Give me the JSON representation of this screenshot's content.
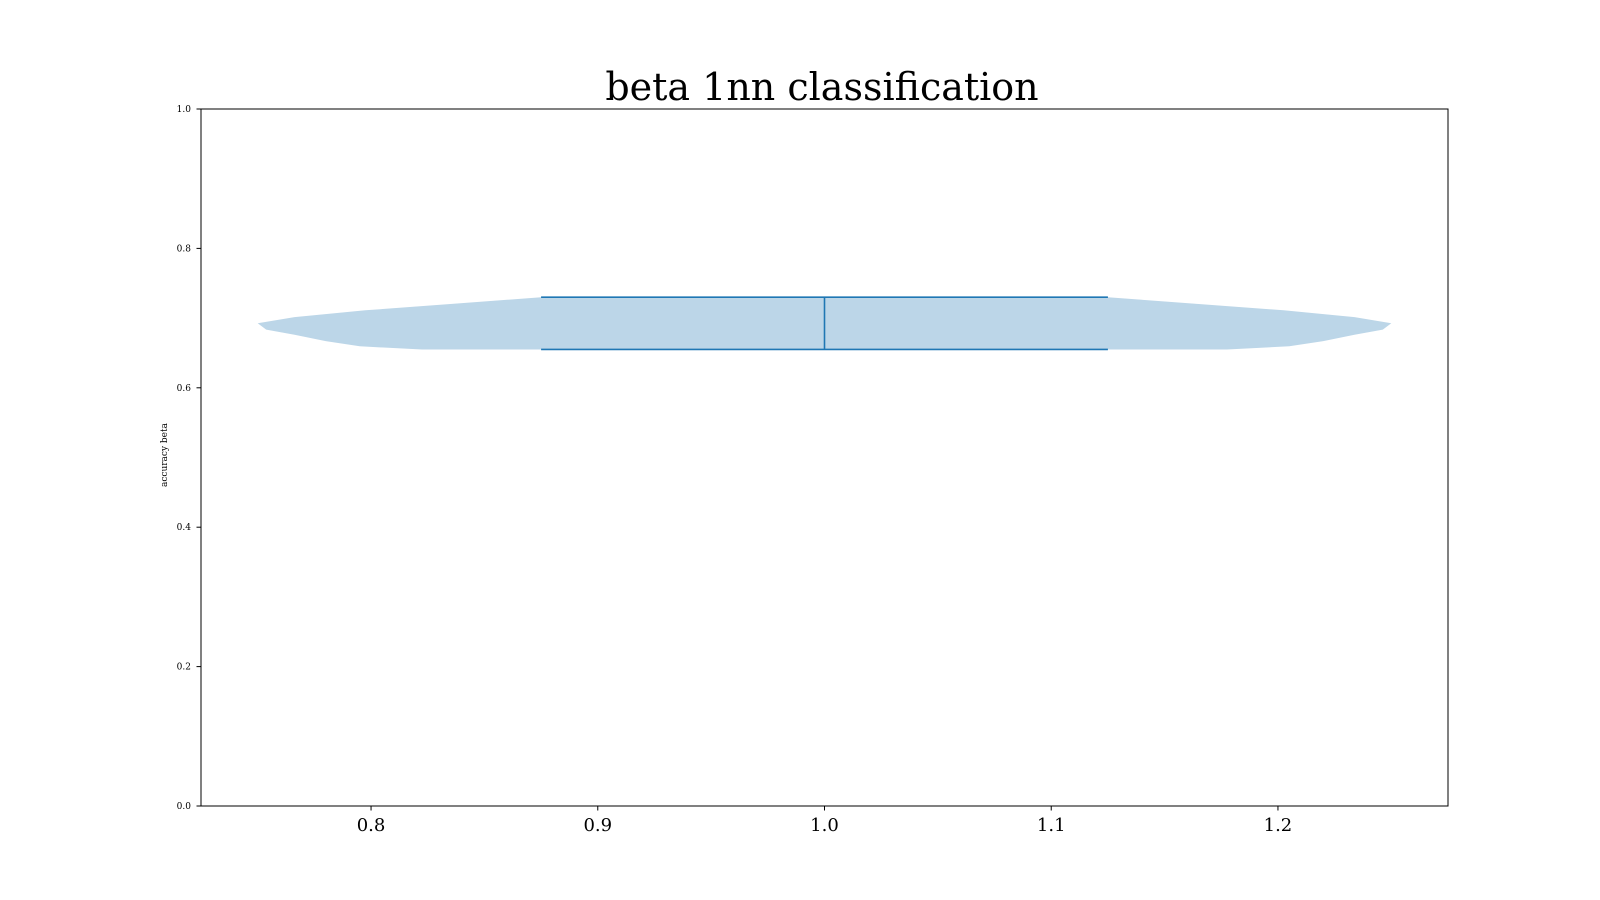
{
  "chart_data": {
    "type": "violin",
    "title": "beta 1nn classification",
    "xlabel": "",
    "ylabel": "accuracy beta",
    "xlim": [
      0.725,
      1.275
    ],
    "ylim": [
      0.0,
      1.0
    ],
    "xticks": [
      "0.8",
      "0.9",
      "1.0",
      "1.1",
      "1.2"
    ],
    "yticks": [
      "0.0",
      "0.2",
      "0.4",
      "0.6",
      "0.8",
      "1.0"
    ],
    "grid": false,
    "violins": [
      {
        "position": 1.0,
        "width": 0.5,
        "min": 0.655,
        "max": 0.73,
        "median": 0.655,
        "peak_density_at": 0.693,
        "body_color": "#bcd6e8",
        "line_color": "#1f77b4"
      }
    ]
  }
}
